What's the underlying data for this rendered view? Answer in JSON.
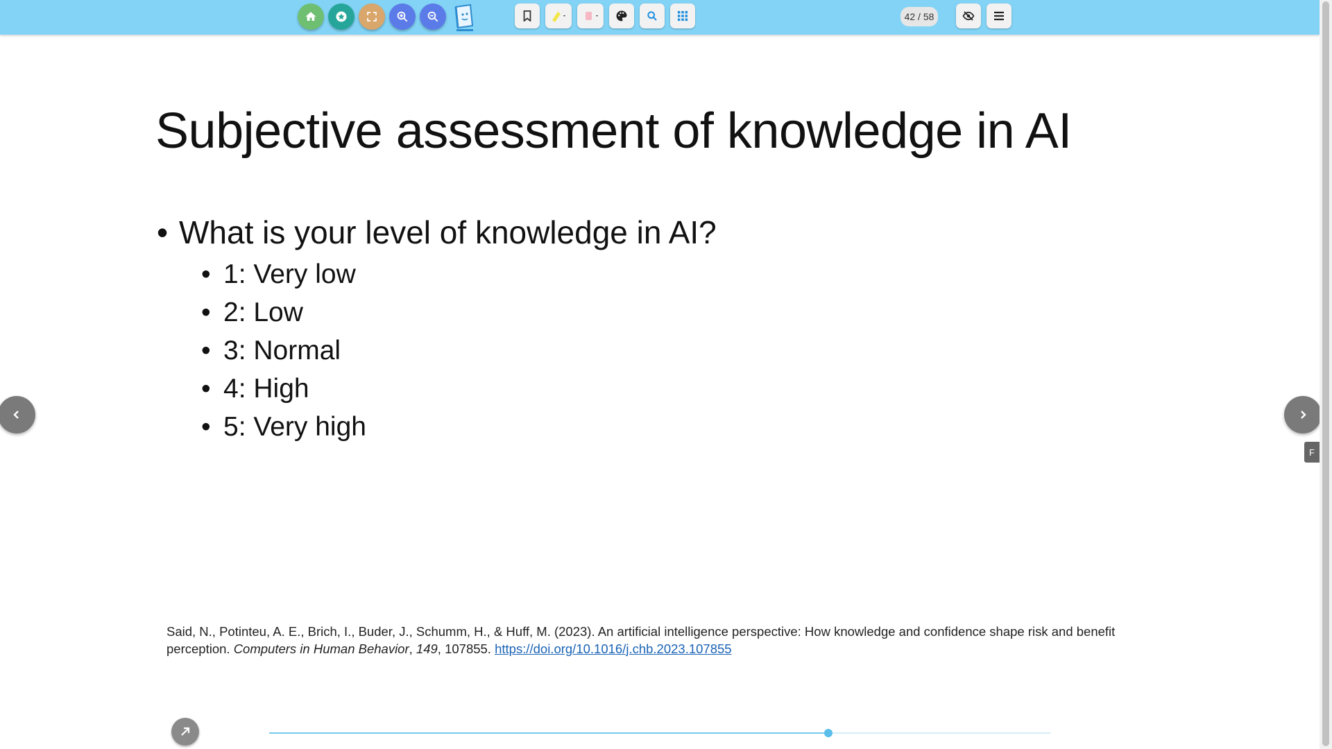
{
  "toolbar": {
    "colors": {
      "bar": "#82d3f5",
      "home": "#6fbf73",
      "favorite": "#26a69a",
      "fullscreen": "#d9a66b",
      "zoom_in": "#5b7be8",
      "zoom_out": "#5b7be8"
    },
    "page_counter": "42 / 58",
    "icons": [
      "home-icon",
      "star-icon",
      "fullscreen-icon",
      "zoom-in-icon",
      "zoom-out-icon",
      "bookmark-icon",
      "highlighter-icon",
      "eraser-icon",
      "palette-icon",
      "search-icon",
      "grid-icon",
      "eye-off-icon",
      "menu-icon"
    ]
  },
  "slide": {
    "title": "Subjective assessment of knowledge in AI",
    "question": "What is your level of knowledge in AI?",
    "options": [
      "1: Very low",
      "2: Low",
      "3: Normal",
      "4: High",
      "5: Very high"
    ],
    "bullet": "•",
    "citation": {
      "text_before": "Said, N., Potinteu, A. E., Brich, I., Buder, J., Schumm, H., & Huff, M. (2023). An artificial intelligence perspective: How knowledge and confidence shape risk and benefit perception. ",
      "journal": "Computers in Human Behavior",
      "sep1": ", ",
      "volume": "149",
      "text_after": ", 107855. ",
      "link": "https://doi.org/10.1016/j.chb.2023.107855"
    }
  },
  "side_tab": "F",
  "progress": {
    "fraction": 0.716
  }
}
